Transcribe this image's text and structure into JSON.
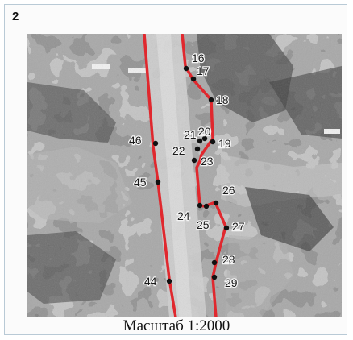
{
  "panel_number": "2",
  "scale_caption": "Масштаб 1:2000",
  "colors": {
    "boundary_line": "#e0282e",
    "survey_point": "#111111",
    "road_surface": "#c9c9c9",
    "vegetation": "#5e5e5e"
  },
  "map": {
    "imagery": "grayscale aerial photo with road corridor",
    "points": [
      {
        "label": "16"
      },
      {
        "label": "17"
      },
      {
        "label": "18"
      },
      {
        "label": "19"
      },
      {
        "label": "20"
      },
      {
        "label": "21"
      },
      {
        "label": "22"
      },
      {
        "label": "23"
      },
      {
        "label": "24"
      },
      {
        "label": "25"
      },
      {
        "label": "26"
      },
      {
        "label": "27"
      },
      {
        "label": "28"
      },
      {
        "label": "29"
      },
      {
        "label": "44"
      },
      {
        "label": "45"
      },
      {
        "label": "46"
      }
    ]
  }
}
